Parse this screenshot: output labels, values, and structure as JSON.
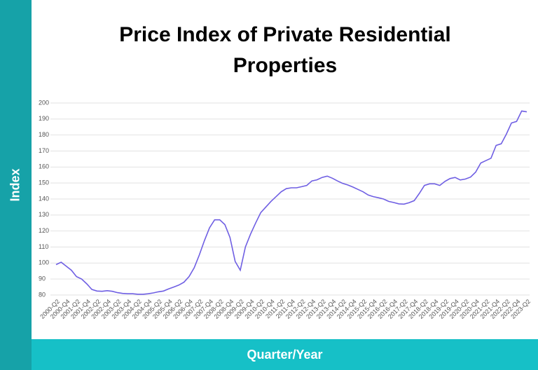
{
  "chart_data": {
    "type": "line",
    "title": "Price Index of Private Residential Properties",
    "x_label": "Quarter/Year",
    "y_label": "Index",
    "categories": [
      "2000-Q2",
      null,
      "2000-Q4",
      null,
      "2001-Q2",
      null,
      "2001-Q4",
      null,
      "2002-Q2",
      null,
      "2002-Q4",
      null,
      "2003-Q2",
      null,
      "2003-Q4",
      null,
      "2004-Q2",
      null,
      "2004-Q4",
      null,
      "2005-Q2",
      null,
      "2005-Q4",
      null,
      "2006-Q2",
      null,
      "2006-Q4",
      null,
      "2007-Q2",
      null,
      "2007-Q4",
      null,
      "2008-Q2",
      null,
      "2008-Q4",
      null,
      "2009-Q2",
      null,
      "2009-Q4",
      null,
      "2010-Q2",
      null,
      "2010-Q4",
      null,
      "2011-Q2",
      null,
      "2011-Q4",
      null,
      "2012-Q2",
      null,
      "2012-Q4",
      null,
      "2013-Q2",
      null,
      "2013-Q4",
      null,
      "2014-Q2",
      null,
      "2014-Q4",
      null,
      "2015-Q2",
      null,
      "2015-Q4",
      null,
      "2016-Q2",
      null,
      "2016-Q4",
      null,
      "2017-Q2",
      null,
      "2017-Q4",
      null,
      "2018-Q2",
      null,
      "2018-Q4",
      null,
      "2019-Q2",
      null,
      "2019-Q4",
      null,
      "2020-Q2",
      null,
      "2020-Q4",
      null,
      "2021-Q2",
      null,
      "2021-Q4",
      null,
      "2022-Q2",
      null,
      "2022-Q4",
      null,
      "2023-Q2"
    ],
    "values": [
      99,
      100.5,
      98,
      95.5,
      91.5,
      90,
      87,
      83.5,
      82.5,
      82.3,
      82.7,
      82.3,
      81.5,
      81,
      80.8,
      80.8,
      80.5,
      80.5,
      80.8,
      81.3,
      82,
      82.5,
      83.8,
      85,
      86.2,
      88,
      91.5,
      97,
      105,
      114,
      122,
      127,
      127,
      124,
      116,
      101,
      95.5,
      110,
      118,
      125,
      131.5,
      135,
      138.5,
      141.5,
      144.5,
      146.5,
      147,
      147,
      147.7,
      148.5,
      151.3,
      152,
      153.5,
      154.3,
      153,
      151.3,
      149.8,
      148.8,
      147.5,
      146,
      144.5,
      142.5,
      141.5,
      140.8,
      140,
      138.5,
      137.8,
      137,
      136.8,
      137.7,
      139,
      143.5,
      148.5,
      149.5,
      149.5,
      148.5,
      151,
      152.8,
      153.5,
      151.9,
      152.5,
      153.7,
      156.8,
      162.5,
      164,
      165.5,
      173.5,
      174.5,
      180.5,
      187.5,
      188.5,
      195,
      194.5
    ],
    "color": "#6f5fe3",
    "ylim": [
      80,
      200
    ],
    "yticks": [
      80,
      90,
      100,
      110,
      120,
      130,
      140,
      150,
      160,
      170,
      180,
      190,
      200
    ],
    "grid": true
  }
}
